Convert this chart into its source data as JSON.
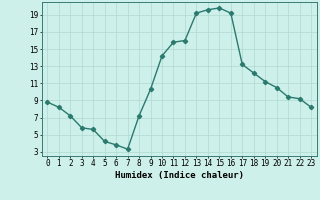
{
  "x": [
    0,
    1,
    2,
    3,
    4,
    5,
    6,
    7,
    8,
    9,
    10,
    11,
    12,
    13,
    14,
    15,
    16,
    17,
    18,
    19,
    20,
    21,
    22,
    23
  ],
  "y": [
    8.8,
    8.2,
    7.2,
    5.8,
    5.6,
    4.2,
    3.8,
    3.3,
    7.2,
    10.3,
    14.2,
    15.8,
    16.0,
    19.2,
    19.6,
    19.8,
    19.2,
    13.2,
    12.2,
    11.2,
    10.5,
    9.4,
    9.2,
    8.2
  ],
  "line_color": "#2a7a6e",
  "marker": "D",
  "markersize": 2.2,
  "linewidth": 1.0,
  "background_color": "#cef0ea",
  "grid_color": "#b0d8d2",
  "xlabel": "Humidex (Indice chaleur)",
  "xlabel_fontsize": 6.5,
  "tick_fontsize": 5.5,
  "yticks": [
    3,
    5,
    7,
    9,
    11,
    13,
    15,
    17,
    19
  ],
  "xticks": [
    0,
    1,
    2,
    3,
    4,
    5,
    6,
    7,
    8,
    9,
    10,
    11,
    12,
    13,
    14,
    15,
    16,
    17,
    18,
    19,
    20,
    21,
    22,
    23
  ],
  "ylim": [
    2.5,
    20.5
  ],
  "xlim": [
    -0.5,
    23.5
  ]
}
